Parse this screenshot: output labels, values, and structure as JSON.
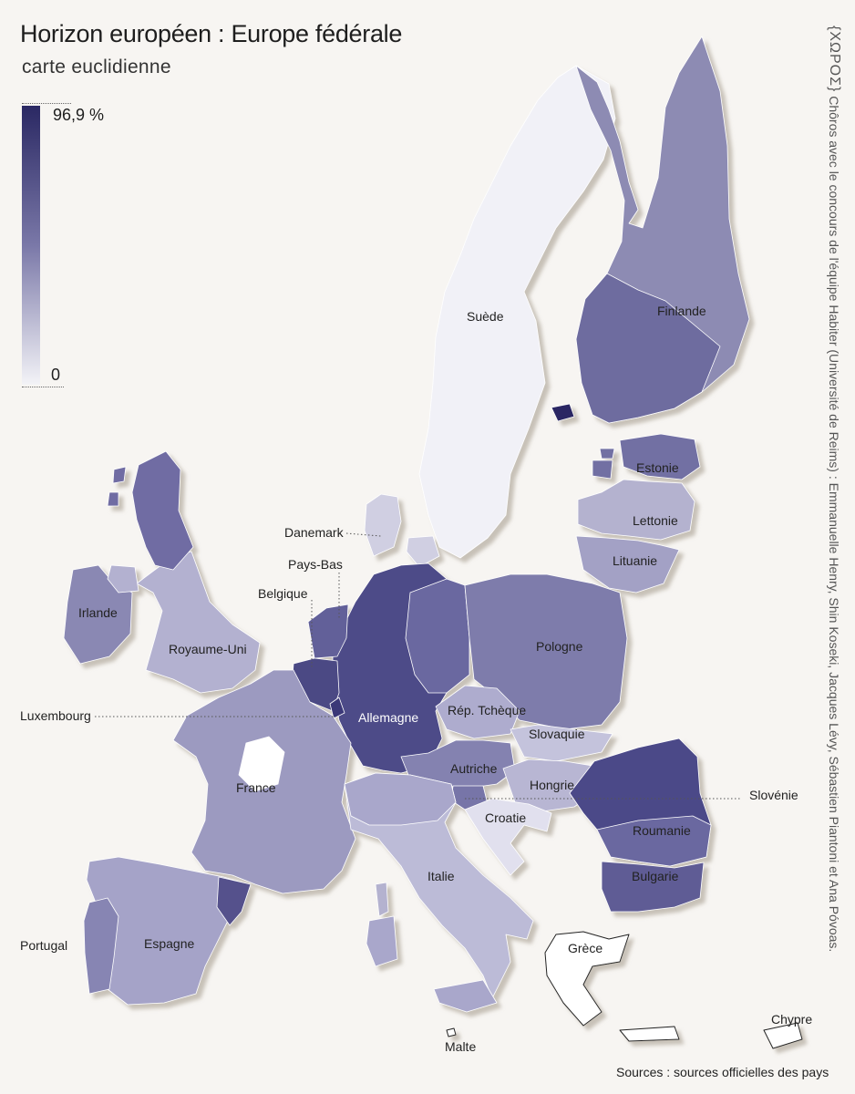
{
  "title": "Horizon européen : Europe fédérale",
  "subtitle": "carte euclidienne",
  "legend": {
    "max_label": "96,9 %",
    "min_label": "0",
    "color_max": "#2a2863",
    "color_min": "#f3f3f7"
  },
  "countries": {
    "suede": "Suède",
    "finlande": "Finlande",
    "estonie": "Estonie",
    "lettonie": "Lettonie",
    "lituanie": "Lituanie",
    "danemark": "Danemark",
    "pays_bas": "Pays-Bas",
    "belgique": "Belgique",
    "irlande": "Irlande",
    "royaume_uni": "Royaume-Uni",
    "pologne": "Pologne",
    "allemagne": "Allemagne",
    "rep_tcheque": "Rép. Tchèque",
    "slovaquie": "Slovaquie",
    "luxembourg": "Luxembourg",
    "autriche": "Autriche",
    "hongrie": "Hongrie",
    "france": "France",
    "slovenie": "Slovénie",
    "croatie": "Croatie",
    "roumanie": "Roumanie",
    "italie": "Italie",
    "bulgarie": "Bulgarie",
    "portugal": "Portugal",
    "espagne": "Espagne",
    "grece": "Grèce",
    "chypre": "Chypre",
    "malte": "Malte"
  },
  "credits": {
    "logo": "{ΧΩΡΟΣ}",
    "text": "Chôros avec le concours de l'équipe Habiter (Université de Reims) : Emmanuelle Henry, Shin Koseki, Jacques Lévy, Sébastien Piantoni et Ana Póvoas."
  },
  "sources": "Sources : sources officielles des pays"
}
